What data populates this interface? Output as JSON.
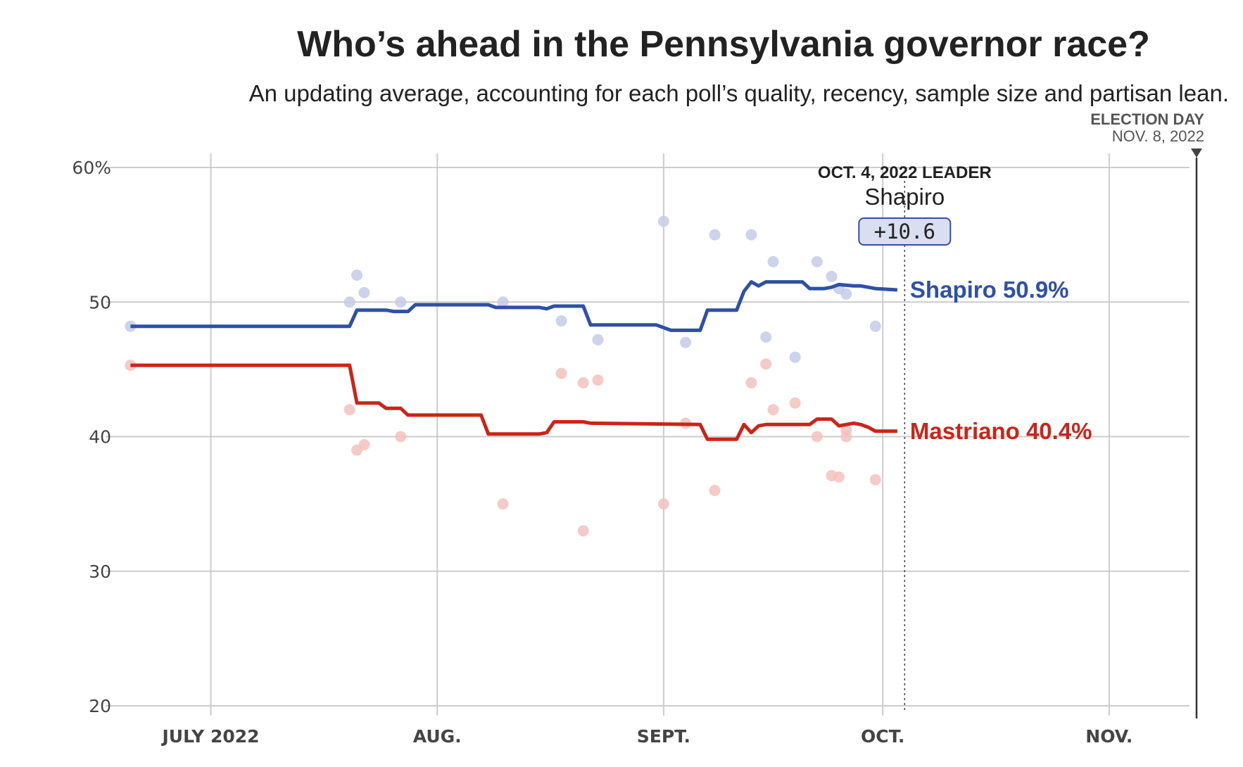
{
  "header": {
    "title": "Who’s ahead in the Pennsylvania governor race?",
    "subtitle": "An updating average, accounting for each poll’s quality, recency, sample size and partisan lean."
  },
  "election_day": {
    "label": "ELECTION DAY",
    "date": "NOV. 8, 2022"
  },
  "leader_box": {
    "heading": "OCT. 4, 2022 LEADER",
    "name": "Shapiro",
    "margin": "+10.6",
    "date": "2022-10-04"
  },
  "colors": {
    "shapiro": "#2e50a6",
    "mastriano": "#cc2418",
    "shapiro_dot": "#c3cbe6",
    "mastriano_dot": "#f3c2be",
    "grid": "#cccccc"
  },
  "chart_data": {
    "type": "line",
    "title": "Who’s ahead in the Pennsylvania governor race?",
    "subtitle": "An updating average, accounting for each poll’s quality, recency, sample size and partisan lean.",
    "xlabel": "",
    "ylabel": "",
    "xlim": [
      "2022-06-19",
      "2022-11-12"
    ],
    "ylim": [
      20,
      60
    ],
    "y_ticks": [
      20,
      30,
      40,
      50,
      60
    ],
    "y_tick_labels": [
      "20",
      "30",
      "40",
      "50",
      "60%"
    ],
    "x_ticks": [
      "2022-07-01",
      "2022-08-01",
      "2022-09-01",
      "2022-10-01",
      "2022-11-01"
    ],
    "x_tick_labels": [
      "JULY 2022",
      "AUG.",
      "SEPT.",
      "OCT.",
      "NOV."
    ],
    "grid": true,
    "series": [
      {
        "name": "Shapiro",
        "end_label": "Shapiro 50.9%",
        "color": "#2e50a6",
        "average": [
          [
            "2022-06-20",
            48.2
          ],
          [
            "2022-07-20",
            48.2
          ],
          [
            "2022-07-21",
            49.4
          ],
          [
            "2022-07-25",
            49.4
          ],
          [
            "2022-07-26",
            49.3
          ],
          [
            "2022-07-28",
            49.3
          ],
          [
            "2022-07-29",
            49.8
          ],
          [
            "2022-08-08",
            49.8
          ],
          [
            "2022-08-09",
            49.6
          ],
          [
            "2022-08-15",
            49.6
          ],
          [
            "2022-08-16",
            49.5
          ],
          [
            "2022-08-17",
            49.7
          ],
          [
            "2022-08-21",
            49.7
          ],
          [
            "2022-08-22",
            48.3
          ],
          [
            "2022-08-31",
            48.3
          ],
          [
            "2022-09-02",
            47.9
          ],
          [
            "2022-09-06",
            47.9
          ],
          [
            "2022-09-07",
            49.4
          ],
          [
            "2022-09-11",
            49.4
          ],
          [
            "2022-09-12",
            50.8
          ],
          [
            "2022-09-13",
            51.5
          ],
          [
            "2022-09-14",
            51.2
          ],
          [
            "2022-09-15",
            51.5
          ],
          [
            "2022-09-20",
            51.5
          ],
          [
            "2022-09-21",
            51.0
          ],
          [
            "2022-09-23",
            51.0
          ],
          [
            "2022-09-24",
            51.1
          ],
          [
            "2022-09-25",
            51.3
          ],
          [
            "2022-09-27",
            51.2
          ],
          [
            "2022-09-28",
            51.2
          ],
          [
            "2022-09-30",
            51.0
          ],
          [
            "2022-10-03",
            50.9
          ]
        ],
        "polls": [
          [
            "2022-06-20",
            48.2
          ],
          [
            "2022-07-20",
            50.0
          ],
          [
            "2022-07-21",
            52.0
          ],
          [
            "2022-07-22",
            50.7
          ],
          [
            "2022-07-27",
            50.0
          ],
          [
            "2022-08-10",
            50.0
          ],
          [
            "2022-08-18",
            48.6
          ],
          [
            "2022-08-23",
            47.2
          ],
          [
            "2022-09-01",
            56.0
          ],
          [
            "2022-09-04",
            47.0
          ],
          [
            "2022-09-08",
            55.0
          ],
          [
            "2022-09-13",
            55.0
          ],
          [
            "2022-09-15",
            47.4
          ],
          [
            "2022-09-16",
            53.0
          ],
          [
            "2022-09-19",
            45.9
          ],
          [
            "2022-09-22",
            53.0
          ],
          [
            "2022-09-24",
            51.9
          ],
          [
            "2022-09-25",
            51.0
          ],
          [
            "2022-09-26",
            50.6
          ],
          [
            "2022-09-30",
            48.2
          ]
        ]
      },
      {
        "name": "Mastriano",
        "end_label": "Mastriano 40.4%",
        "color": "#cc2418",
        "average": [
          [
            "2022-06-20",
            45.3
          ],
          [
            "2022-07-20",
            45.3
          ],
          [
            "2022-07-21",
            42.5
          ],
          [
            "2022-07-24",
            42.5
          ],
          [
            "2022-07-25",
            42.1
          ],
          [
            "2022-07-27",
            42.1
          ],
          [
            "2022-07-28",
            41.6
          ],
          [
            "2022-08-07",
            41.6
          ],
          [
            "2022-08-08",
            40.2
          ],
          [
            "2022-08-15",
            40.2
          ],
          [
            "2022-08-16",
            40.3
          ],
          [
            "2022-08-17",
            41.1
          ],
          [
            "2022-08-21",
            41.1
          ],
          [
            "2022-08-22",
            41.0
          ],
          [
            "2022-09-06",
            40.9
          ],
          [
            "2022-09-07",
            39.8
          ],
          [
            "2022-09-11",
            39.8
          ],
          [
            "2022-09-12",
            40.9
          ],
          [
            "2022-09-13",
            40.3
          ],
          [
            "2022-09-14",
            40.8
          ],
          [
            "2022-09-15",
            40.9
          ],
          [
            "2022-09-21",
            40.9
          ],
          [
            "2022-09-22",
            41.3
          ],
          [
            "2022-09-24",
            41.3
          ],
          [
            "2022-09-25",
            40.8
          ],
          [
            "2022-09-27",
            41.0
          ],
          [
            "2022-09-28",
            40.9
          ],
          [
            "2022-09-29",
            40.7
          ],
          [
            "2022-09-30",
            40.4
          ],
          [
            "2022-10-03",
            40.4
          ]
        ],
        "polls": [
          [
            "2022-06-20",
            45.3
          ],
          [
            "2022-07-20",
            42.0
          ],
          [
            "2022-07-21",
            39.0
          ],
          [
            "2022-07-22",
            39.4
          ],
          [
            "2022-07-27",
            40.0
          ],
          [
            "2022-08-10",
            35.0
          ],
          [
            "2022-08-18",
            44.7
          ],
          [
            "2022-08-21",
            33.0
          ],
          [
            "2022-08-21",
            44.0
          ],
          [
            "2022-08-23",
            44.2
          ],
          [
            "2022-09-01",
            35.0
          ],
          [
            "2022-09-04",
            41.0
          ],
          [
            "2022-09-08",
            36.0
          ],
          [
            "2022-09-13",
            44.0
          ],
          [
            "2022-09-15",
            45.4
          ],
          [
            "2022-09-16",
            42.0
          ],
          [
            "2022-09-19",
            42.5
          ],
          [
            "2022-09-22",
            40.0
          ],
          [
            "2022-09-24",
            37.1
          ],
          [
            "2022-09-25",
            37.0
          ],
          [
            "2022-09-26",
            40.5
          ],
          [
            "2022-09-26",
            40.0
          ],
          [
            "2022-09-30",
            36.8
          ]
        ]
      }
    ]
  }
}
